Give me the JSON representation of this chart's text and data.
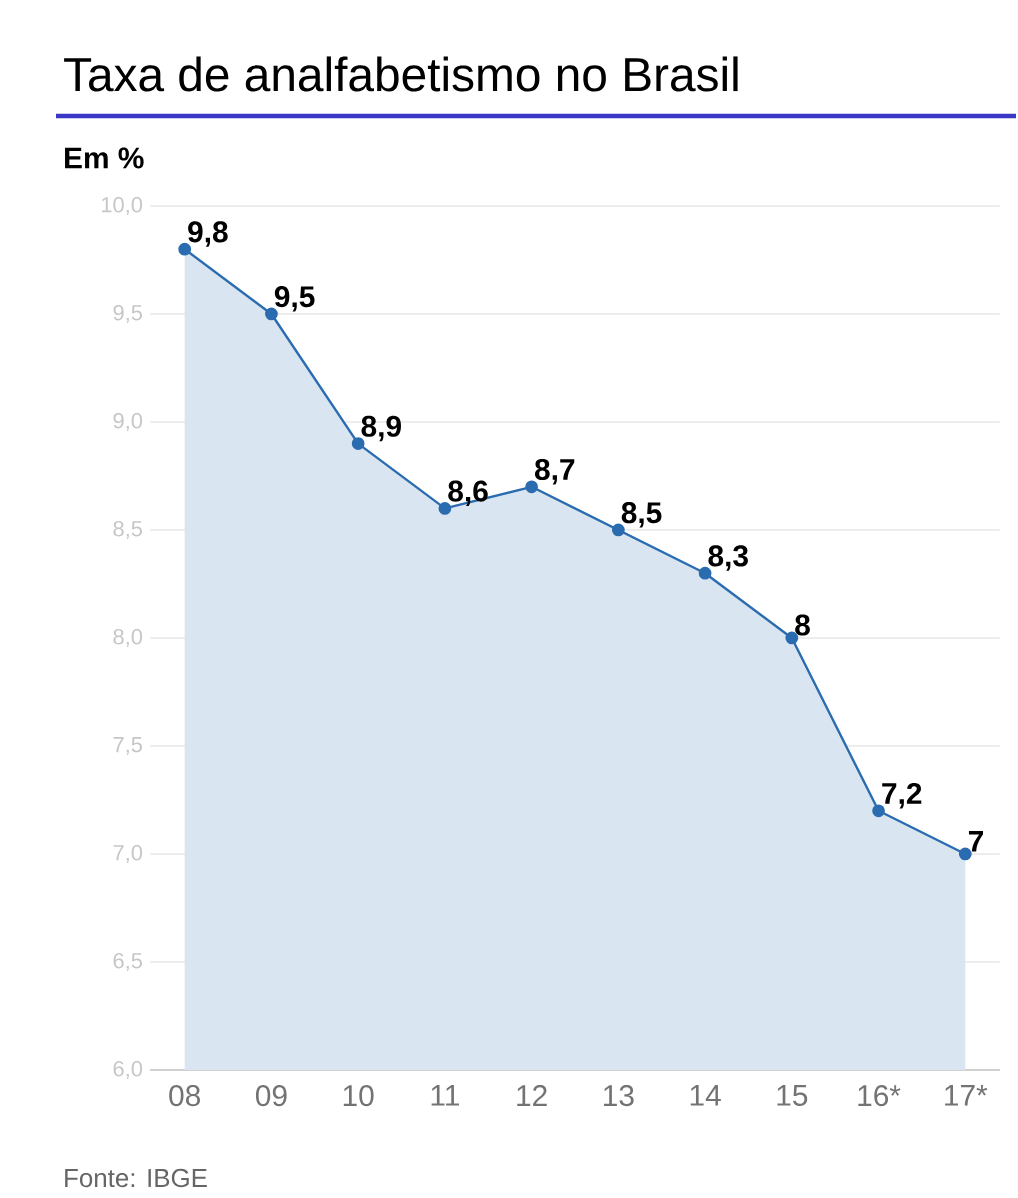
{
  "chart_data": {
    "type": "area",
    "title": "Taxa de analfabetismo no Brasil",
    "ylabel": "Em %",
    "annotations": [
      "Fonte: IBGE"
    ],
    "categories": [
      "08",
      "09",
      "10",
      "11",
      "12",
      "13",
      "14",
      "15",
      "16*",
      "17*"
    ],
    "series": [
      {
        "color": "#2b6cb0",
        "values": [
          9.8,
          9.5,
          8.9,
          8.6,
          8.7,
          8.5,
          8.3,
          8.0,
          7.2,
          7.0
        ],
        "value_labels": [
          "9,8",
          "9,5",
          "8,9",
          "8,6",
          "8,7",
          "8,5",
          "8,3",
          "8",
          "7,2",
          "7"
        ]
      }
    ],
    "ylim": [
      6,
      10
    ],
    "yticks": [
      {
        "value": 6,
        "label": "6,0"
      },
      {
        "value": 6.5,
        "label": "6,5"
      },
      {
        "value": 7,
        "label": "7,0"
      },
      {
        "value": 7.5,
        "label": "7,5"
      },
      {
        "value": 8,
        "label": "8,0"
      },
      {
        "value": 8.5,
        "label": "8,5"
      },
      {
        "value": 9,
        "label": "9,0"
      },
      {
        "value": 9.5,
        "label": "9,5"
      },
      {
        "value": 10,
        "label": "10,0"
      }
    ],
    "grid": "y",
    "marker": "circle"
  }
}
